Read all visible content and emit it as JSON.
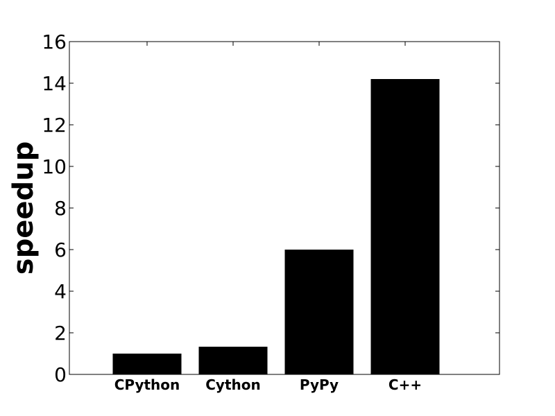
{
  "chart_data": {
    "type": "bar",
    "categories": [
      "CPython",
      "Cython",
      "PyPy",
      "C++"
    ],
    "values": [
      1.0,
      1.33,
      6.0,
      14.2
    ],
    "title": "",
    "xlabel": "",
    "ylabel": "speedup",
    "ylim": [
      0,
      16
    ],
    "yticks": [
      "0",
      "2",
      "4",
      "6",
      "8",
      "10",
      "12",
      "14",
      "16"
    ],
    "grid": false,
    "legend": "none",
    "bar_color": "#000000",
    "axis_color": "#000000",
    "background_color": "#ffffff"
  }
}
